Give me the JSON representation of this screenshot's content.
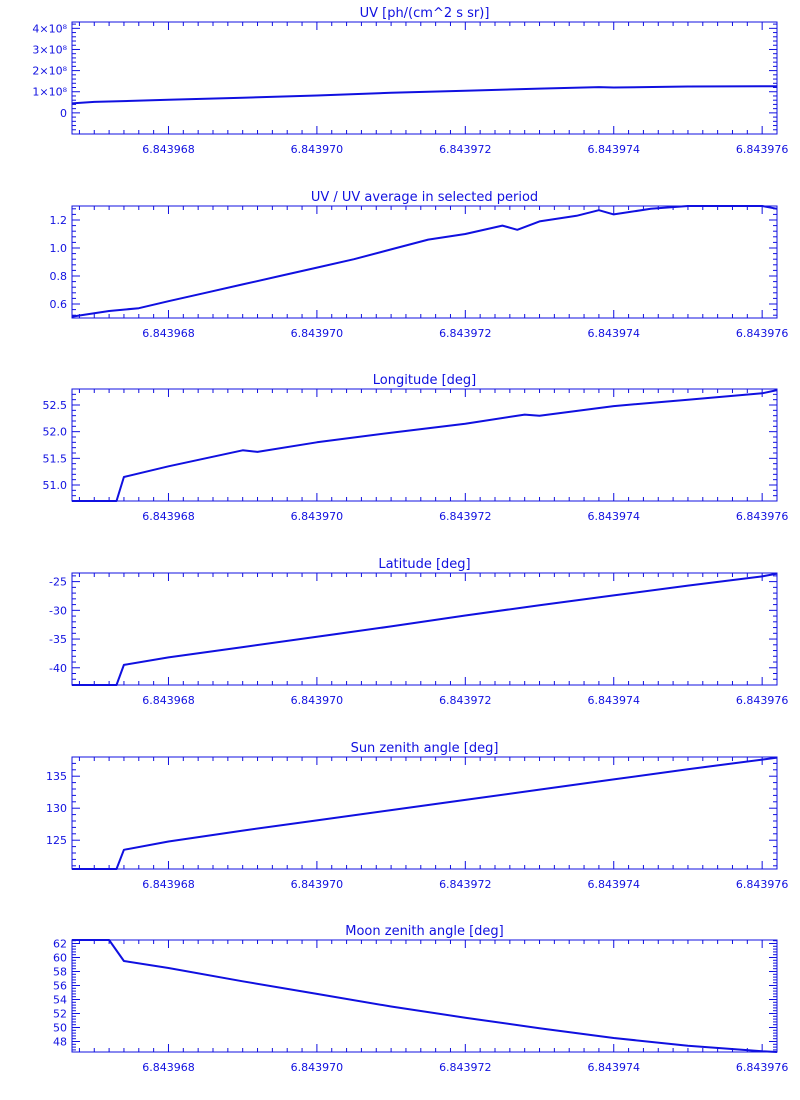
{
  "figure": {
    "color": "#1010e0",
    "background": "#ffffff"
  },
  "chart_data": [
    {
      "type": "line",
      "title": "UV [ph/(cm^2 s sr)]",
      "xlabel": "",
      "ylabel": "",
      "xlim": [
        6.8439667,
        6.8439762
      ],
      "ylim": [
        -100000000,
        430000000
      ],
      "xticks": [
        "6.843968",
        "6.843970",
        "6.843972",
        "6.843974",
        "6.843976"
      ],
      "xtick_values": [
        6.843968,
        6.84397,
        6.843972,
        6.843974,
        6.843976
      ],
      "yticks": [
        "0",
        "1×10⁸",
        "2×10⁸",
        "3×10⁸",
        "4×10⁸"
      ],
      "ytick_values": [
        0,
        100000000,
        200000000,
        300000000,
        400000000
      ],
      "grid": false,
      "series": [
        {
          "x": [
            6.8439667,
            6.843967,
            6.843968,
            6.843969,
            6.84397,
            6.843971,
            6.843972,
            6.843973,
            6.8439738,
            6.843974,
            6.843975,
            6.843976,
            6.8439762
          ],
          "y": [
            45000000,
            52000000,
            62000000,
            72000000,
            82000000,
            95000000,
            105000000,
            115000000,
            122000000,
            120000000,
            125000000,
            126000000,
            126000000
          ]
        }
      ]
    },
    {
      "type": "line",
      "title": "UV / UV average in selected period",
      "xlabel": "",
      "ylabel": "",
      "xlim": [
        6.8439667,
        6.8439762
      ],
      "ylim": [
        0.5,
        1.3
      ],
      "xticks": [
        "6.843968",
        "6.843970",
        "6.843972",
        "6.843974",
        "6.843976"
      ],
      "xtick_values": [
        6.843968,
        6.84397,
        6.843972,
        6.843974,
        6.843976
      ],
      "yticks": [
        "0.6",
        "0.8",
        "1.0",
        "1.2"
      ],
      "ytick_values": [
        0.6,
        0.8,
        1.0,
        1.2
      ],
      "grid": false,
      "series": [
        {
          "x": [
            6.8439667,
            6.8439672,
            6.8439676,
            6.843968,
            6.8439685,
            6.843969,
            6.8439695,
            6.84397,
            6.8439705,
            6.843971,
            6.8439715,
            6.843972,
            6.8439725,
            6.8439727,
            6.843973,
            6.8439735,
            6.8439738,
            6.843974,
            6.8439745,
            6.843975,
            6.8439755,
            6.843976,
            6.8439762
          ],
          "y": [
            0.51,
            0.55,
            0.57,
            0.62,
            0.68,
            0.74,
            0.8,
            0.86,
            0.92,
            0.99,
            1.06,
            1.1,
            1.16,
            1.13,
            1.19,
            1.23,
            1.27,
            1.24,
            1.28,
            1.3,
            1.3,
            1.3,
            1.28
          ]
        }
      ]
    },
    {
      "type": "line",
      "title": "Longitude [deg]",
      "xlabel": "",
      "ylabel": "",
      "xlim": [
        6.8439667,
        6.8439762
      ],
      "ylim": [
        50.7,
        52.8
      ],
      "xticks": [
        "6.843968",
        "6.843970",
        "6.843972",
        "6.843974",
        "6.843976"
      ],
      "xtick_values": [
        6.843968,
        6.84397,
        6.843972,
        6.843974,
        6.843976
      ],
      "yticks": [
        "51.0",
        "51.5",
        "52.0",
        "52.5"
      ],
      "ytick_values": [
        51.0,
        51.5,
        52.0,
        52.5
      ],
      "grid": false,
      "series": [
        {
          "x": [
            6.8439667,
            6.8439673,
            6.8439674,
            6.843968,
            6.843969,
            6.8439692,
            6.84397,
            6.843971,
            6.843972,
            6.8439728,
            6.843973,
            6.843974,
            6.843975,
            6.843976,
            6.8439762
          ],
          "y": [
            50.7,
            50.7,
            51.15,
            51.35,
            51.65,
            51.62,
            51.8,
            51.98,
            52.15,
            52.32,
            52.3,
            52.48,
            52.6,
            52.72,
            52.78
          ]
        }
      ]
    },
    {
      "type": "line",
      "title": "Latitude [deg]",
      "xlabel": "",
      "ylabel": "",
      "xlim": [
        6.8439667,
        6.8439762
      ],
      "ylim": [
        -43,
        -23.5
      ],
      "xticks": [
        "6.843968",
        "6.843970",
        "6.843972",
        "6.843974",
        "6.843976"
      ],
      "xtick_values": [
        6.843968,
        6.84397,
        6.843972,
        6.843974,
        6.843976
      ],
      "yticks": [
        "-40",
        "-35",
        "-30",
        "-25"
      ],
      "ytick_values": [
        -40,
        -35,
        -30,
        -25
      ],
      "grid": false,
      "series": [
        {
          "x": [
            6.8439667,
            6.8439673,
            6.8439674,
            6.843968,
            6.843969,
            6.84397,
            6.843971,
            6.843972,
            6.843973,
            6.843974,
            6.843975,
            6.843976,
            6.8439762
          ],
          "y": [
            -43,
            -43,
            -39.5,
            -38.2,
            -36.4,
            -34.6,
            -32.8,
            -30.9,
            -29.1,
            -27.4,
            -25.7,
            -24.1,
            -23.6
          ]
        }
      ]
    },
    {
      "type": "line",
      "title": "Sun zenith angle [deg]",
      "xlabel": "",
      "ylabel": "",
      "xlim": [
        6.8439667,
        6.8439762
      ],
      "ylim": [
        120.5,
        138
      ],
      "xticks": [
        "6.843968",
        "6.843970",
        "6.843972",
        "6.843974",
        "6.843976"
      ],
      "xtick_values": [
        6.843968,
        6.84397,
        6.843972,
        6.843974,
        6.843976
      ],
      "yticks": [
        "125",
        "130",
        "135"
      ],
      "ytick_values": [
        125,
        130,
        135
      ],
      "grid": false,
      "series": [
        {
          "x": [
            6.8439667,
            6.8439673,
            6.8439674,
            6.843968,
            6.843969,
            6.84397,
            6.843971,
            6.843972,
            6.843973,
            6.843974,
            6.843975,
            6.843976,
            6.8439762
          ],
          "y": [
            120.5,
            120.5,
            123.5,
            124.8,
            126.5,
            128.1,
            129.7,
            131.3,
            132.9,
            134.5,
            136.1,
            137.6,
            137.9
          ]
        }
      ]
    },
    {
      "type": "line",
      "title": "Moon zenith angle [deg]",
      "xlabel": "",
      "ylabel": "",
      "xlim": [
        6.8439667,
        6.8439762
      ],
      "ylim": [
        46.5,
        62.5
      ],
      "xticks": [
        "6.843968",
        "6.843970",
        "6.843972",
        "6.843974",
        "6.843976"
      ],
      "xtick_values": [
        6.843968,
        6.84397,
        6.843972,
        6.843974,
        6.843976
      ],
      "yticks": [
        "48",
        "50",
        "52",
        "54",
        "56",
        "58",
        "60",
        "62"
      ],
      "ytick_values": [
        48,
        50,
        52,
        54,
        56,
        58,
        60,
        62
      ],
      "grid": false,
      "series": [
        {
          "x": [
            6.8439667,
            6.8439672,
            6.8439674,
            6.843968,
            6.843969,
            6.84397,
            6.843971,
            6.843972,
            6.843973,
            6.843974,
            6.843975,
            6.843976,
            6.8439762
          ],
          "y": [
            62.5,
            62.5,
            59.5,
            58.5,
            56.6,
            54.8,
            53.0,
            51.4,
            49.9,
            48.5,
            47.4,
            46.6,
            46.5
          ]
        }
      ]
    }
  ]
}
